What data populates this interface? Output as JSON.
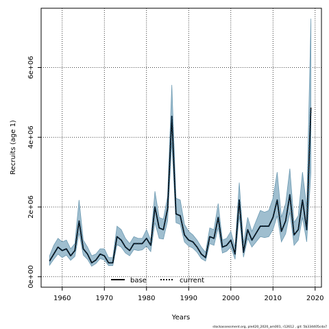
{
  "chart_data": {
    "type": "area",
    "xlabel": "Years",
    "ylabel": "Recruits (age 1)",
    "xlim": [
      1955,
      2021.5
    ],
    "ylim": [
      -300000,
      7700000
    ],
    "x_ticks": [
      1960,
      1970,
      1980,
      1990,
      2000,
      2010,
      2020
    ],
    "x_tick_labels": [
      "1960",
      "1970",
      "1980",
      "1990",
      "2000",
      "2010",
      "2020"
    ],
    "y_ticks": [
      0,
      2000000,
      4000000,
      6000000
    ],
    "y_tick_labels": [
      "0e+00",
      "2e+06",
      "4e+06",
      "6e+06"
    ],
    "grid": true,
    "legend_position": "bottom-center",
    "footer": "stockassessment.org, ple420_2020_am001, r12612 , git: 5b334405cda7",
    "x": [
      1957,
      1958,
      1959,
      1960,
      1961,
      1962,
      1963,
      1964,
      1965,
      1966,
      1967,
      1968,
      1969,
      1970,
      1971,
      1972,
      1973,
      1974,
      1975,
      1976,
      1977,
      1978,
      1979,
      1980,
      1981,
      1982,
      1983,
      1984,
      1985,
      1986,
      1987,
      1988,
      1989,
      1990,
      1991,
      1992,
      1993,
      1994,
      1995,
      1996,
      1997,
      1998,
      1999,
      2000,
      2001,
      2002,
      2003,
      2004,
      2005,
      2006,
      2007,
      2008,
      2009,
      2010,
      2011,
      2012,
      2013,
      2014,
      2015,
      2016,
      2017,
      2018,
      2019
    ],
    "series": [
      {
        "name": "base",
        "style": "solid",
        "color": "#000000",
        "values": [
          450000,
          650000,
          850000,
          750000,
          800000,
          600000,
          750000,
          1600000,
          800000,
          650000,
          400000,
          480000,
          650000,
          600000,
          400000,
          400000,
          1150000,
          1050000,
          850000,
          750000,
          950000,
          950000,
          950000,
          1100000,
          900000,
          2000000,
          1400000,
          1350000,
          1950000,
          4600000,
          1800000,
          1750000,
          1200000,
          1050000,
          1000000,
          850000,
          650000,
          550000,
          1150000,
          1100000,
          1700000,
          850000,
          900000,
          1050000,
          650000,
          2200000,
          700000,
          1350000,
          1050000,
          1250000,
          1450000,
          1450000,
          1450000,
          1700000,
          2200000,
          1300000,
          1600000,
          2350000,
          1200000,
          1350000,
          2200000,
          1350000,
          4850000
        ]
      },
      {
        "name": "current",
        "style": "dotted",
        "color": "#000000",
        "values": [
          450000,
          650000,
          850000,
          750000,
          800000,
          600000,
          750000,
          1600000,
          800000,
          650000,
          400000,
          480000,
          650000,
          600000,
          400000,
          400000,
          1150000,
          1050000,
          850000,
          750000,
          950000,
          950000,
          950000,
          1100000,
          900000,
          2000000,
          1400000,
          1350000,
          1950000,
          4600000,
          1800000,
          1750000,
          1200000,
          1050000,
          1000000,
          850000,
          650000,
          550000,
          1150000,
          1100000,
          1700000,
          850000,
          900000,
          1050000,
          650000,
          2200000,
          700000,
          1350000,
          1050000,
          1250000,
          1450000,
          1450000,
          1450000,
          1700000,
          2200000,
          1300000,
          1600000,
          2350000,
          1200000,
          1350000,
          2200000,
          1350000,
          4850000
        ]
      }
    ],
    "band": {
      "fill": "#9fbecf",
      "stroke": "#6d9ab2",
      "upper": [
        600000,
        900000,
        1100000,
        1000000,
        1050000,
        800000,
        950000,
        2200000,
        1050000,
        850000,
        600000,
        650000,
        800000,
        800000,
        550000,
        550000,
        1450000,
        1350000,
        1100000,
        950000,
        1150000,
        1100000,
        1100000,
        1350000,
        1050000,
        2450000,
        1700000,
        1650000,
        2300000,
        5500000,
        2250000,
        2200000,
        1500000,
        1300000,
        1200000,
        1050000,
        850000,
        700000,
        1400000,
        1350000,
        2100000,
        1050000,
        1100000,
        1300000,
        850000,
        2700000,
        950000,
        1700000,
        1300000,
        1600000,
        1900000,
        1850000,
        1900000,
        2250000,
        3000000,
        1700000,
        2100000,
        3100000,
        1550000,
        1750000,
        3000000,
        2000000,
        7400000
      ],
      "lower": [
        330000,
        500000,
        650000,
        550000,
        620000,
        470000,
        580000,
        1250000,
        620000,
        500000,
        300000,
        380000,
        520000,
        480000,
        320000,
        320000,
        920000,
        850000,
        680000,
        600000,
        780000,
        750000,
        770000,
        880000,
        720000,
        1550000,
        1100000,
        1080000,
        1600000,
        3850000,
        1550000,
        1500000,
        1000000,
        880000,
        820000,
        700000,
        520000,
        450000,
        950000,
        900000,
        1400000,
        680000,
        730000,
        850000,
        500000,
        1750000,
        560000,
        1100000,
        850000,
        1000000,
        1150000,
        1120000,
        1150000,
        1350000,
        1750000,
        1000000,
        1230000,
        1850000,
        900000,
        1050000,
        1700000,
        1000000,
        3000000
      ]
    }
  }
}
